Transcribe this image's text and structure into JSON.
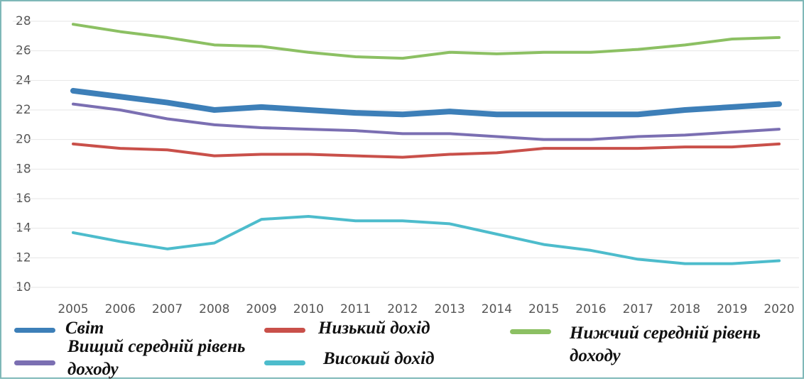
{
  "chart_data": {
    "type": "line",
    "categories": [
      "2005",
      "2006",
      "2007",
      "2008",
      "2009",
      "2010",
      "2011",
      "2012",
      "2013",
      "2014",
      "2015",
      "2016",
      "2017",
      "2018",
      "2019",
      "2020"
    ],
    "series": [
      {
        "name": "Світ",
        "color": "#3d7fb8",
        "values": [
          23.3,
          22.9,
          22.5,
          22.0,
          22.2,
          22.0,
          21.8,
          21.7,
          21.9,
          21.7,
          21.7,
          21.7,
          21.7,
          22.0,
          22.2,
          22.4
        ]
      },
      {
        "name": "Низький дохід",
        "color": "#c9504a",
        "values": [
          19.7,
          19.4,
          19.3,
          18.9,
          19.0,
          19.0,
          18.9,
          18.8,
          19.0,
          19.1,
          19.4,
          19.4,
          19.4,
          19.5,
          19.5,
          19.7
        ]
      },
      {
        "name": "Нижчий середній рівень доходу",
        "color": "#8cc063",
        "values": [
          27.8,
          27.3,
          26.9,
          26.4,
          26.3,
          25.9,
          25.6,
          25.5,
          25.9,
          25.8,
          25.9,
          25.9,
          26.1,
          26.4,
          26.8,
          26.9
        ]
      },
      {
        "name": "Вищий середній рівень доходу",
        "color": "#7b6fb2",
        "values": [
          22.4,
          22.0,
          21.4,
          21.0,
          20.8,
          20.7,
          20.6,
          20.4,
          20.4,
          20.2,
          20.0,
          20.0,
          20.2,
          20.3,
          20.5,
          20.7
        ]
      },
      {
        "name": "Високий дохід",
        "color": "#4dbccc",
        "values": [
          13.7,
          13.1,
          12.6,
          13.0,
          14.6,
          14.8,
          14.5,
          14.5,
          14.3,
          13.6,
          12.9,
          12.5,
          11.9,
          11.6,
          11.6,
          11.8
        ]
      }
    ],
    "ylim": [
      10,
      28
    ],
    "yticks": [
      10,
      12,
      14,
      16,
      18,
      20,
      22,
      24,
      26,
      28
    ],
    "grid": true
  }
}
